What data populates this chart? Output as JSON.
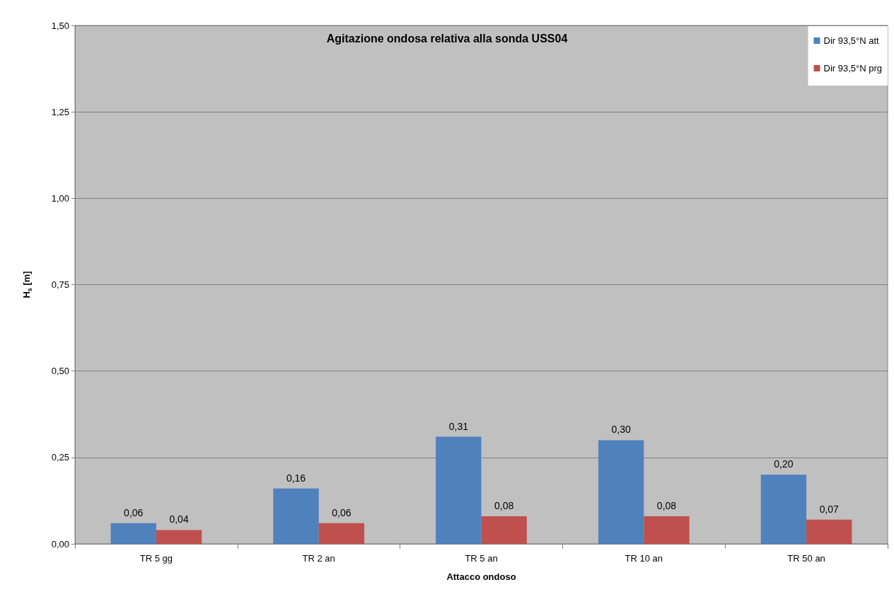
{
  "chart_data": {
    "type": "bar",
    "title": "Agitazione ondosa relativa alla sonda USS04",
    "xlabel": "Attacco ondoso",
    "ylabel": "H$_{s}$ [m]",
    "categories": [
      "TR 5 gg",
      "TR 2 an",
      "TR 5 an",
      "TR 10 an",
      "TR 50 an"
    ],
    "series": [
      {
        "name": "Dir 93,5°N att",
        "color": "#4f81bd",
        "values": [
          0.06,
          0.16,
          0.31,
          0.3,
          0.2
        ],
        "value_labels": [
          "0,06",
          "0,16",
          "0,31",
          "0,30",
          "0,20"
        ]
      },
      {
        "name": "Dir 93,5°N prg",
        "color": "#c0504d",
        "values": [
          0.04,
          0.06,
          0.08,
          0.08,
          0.07
        ],
        "value_labels": [
          "0,04",
          "0,06",
          "0,08",
          "0,08",
          "0,07"
        ]
      }
    ],
    "ylim": [
      0,
      1.5
    ],
    "yticks": [
      {
        "value": 0,
        "label": "0,00"
      },
      {
        "value": 0.25,
        "label": "0,25"
      },
      {
        "value": 0.5,
        "label": "0,50"
      },
      {
        "value": 0.75,
        "label": "0,75"
      },
      {
        "value": 1,
        "label": "1,00"
      },
      {
        "value": 1.25,
        "label": "1,25"
      },
      {
        "value": 1.5,
        "label": "1,50"
      }
    ],
    "grid": "y",
    "legend": "top right"
  }
}
